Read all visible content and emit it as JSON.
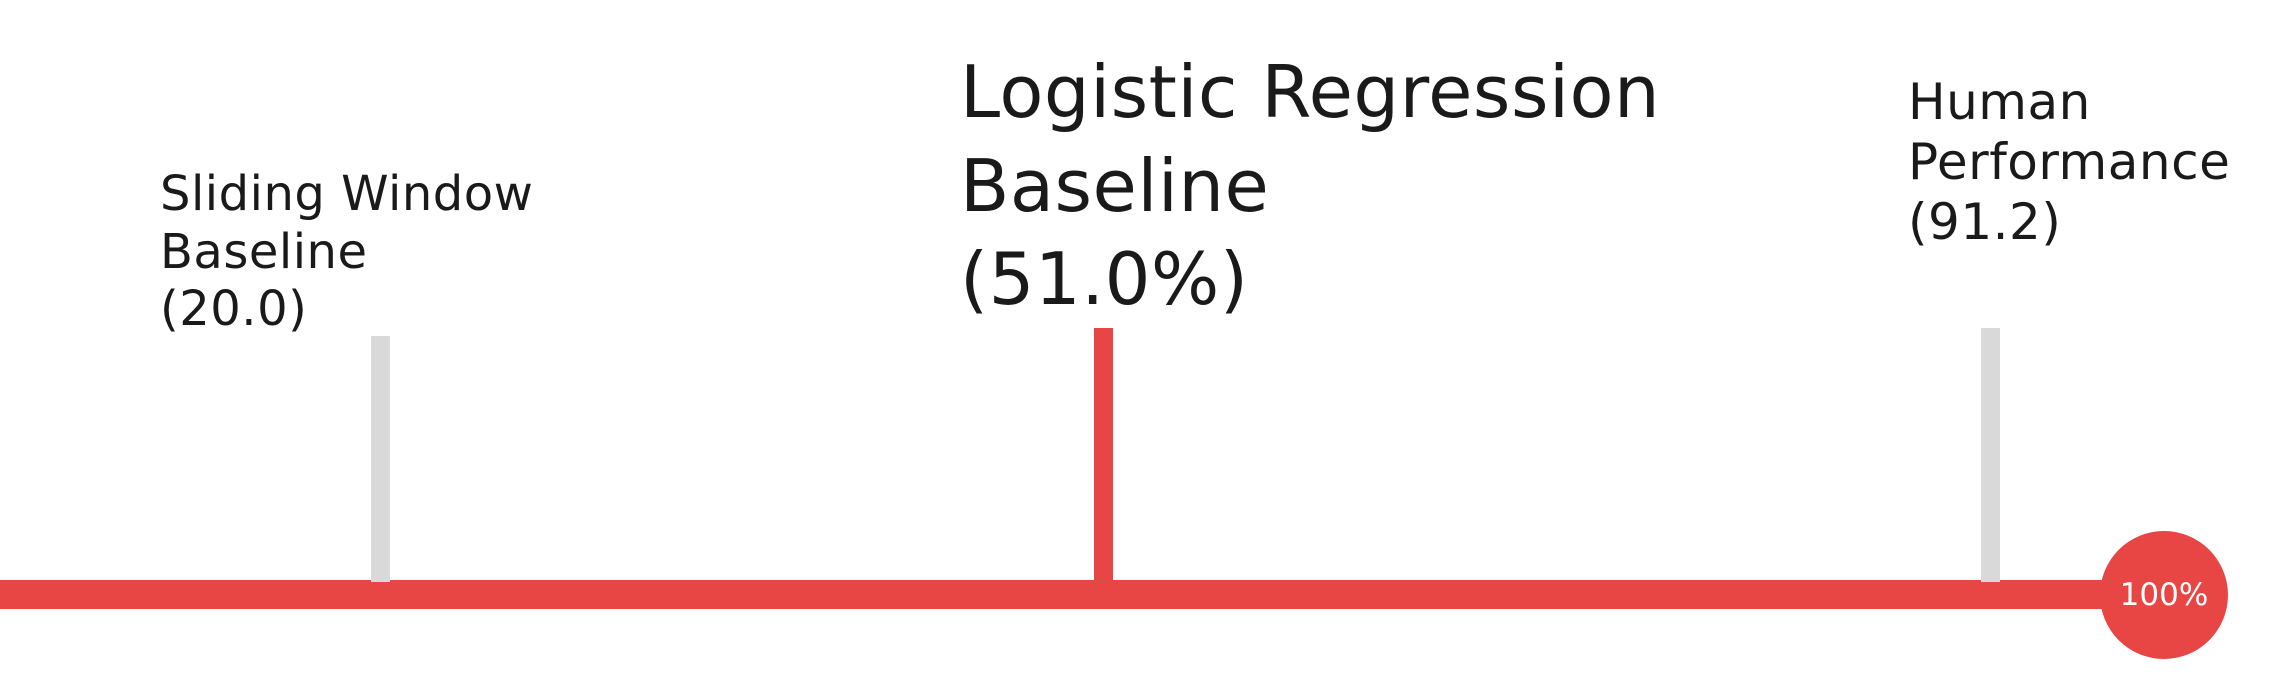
{
  "colors": {
    "accent": "#e84545",
    "muted_tick": "#d9d9d9",
    "text": "#1a1a1a",
    "background": "#ffffff"
  },
  "milestones": [
    {
      "name": "sliding-window",
      "line1": "Sliding Window",
      "line2": "Baseline",
      "value_text": "(20.0)",
      "value": 20.0
    },
    {
      "name": "logistic-regression",
      "line1": "Logistic Regression",
      "line2": "Baseline",
      "value_text": "(51.0%)",
      "value": 51.0
    },
    {
      "name": "human-performance",
      "line1": "Human",
      "line2": "Performance",
      "value_text": "(91.2)",
      "value": 91.2
    }
  ],
  "end_marker": {
    "label": "100%",
    "value": 100
  }
}
